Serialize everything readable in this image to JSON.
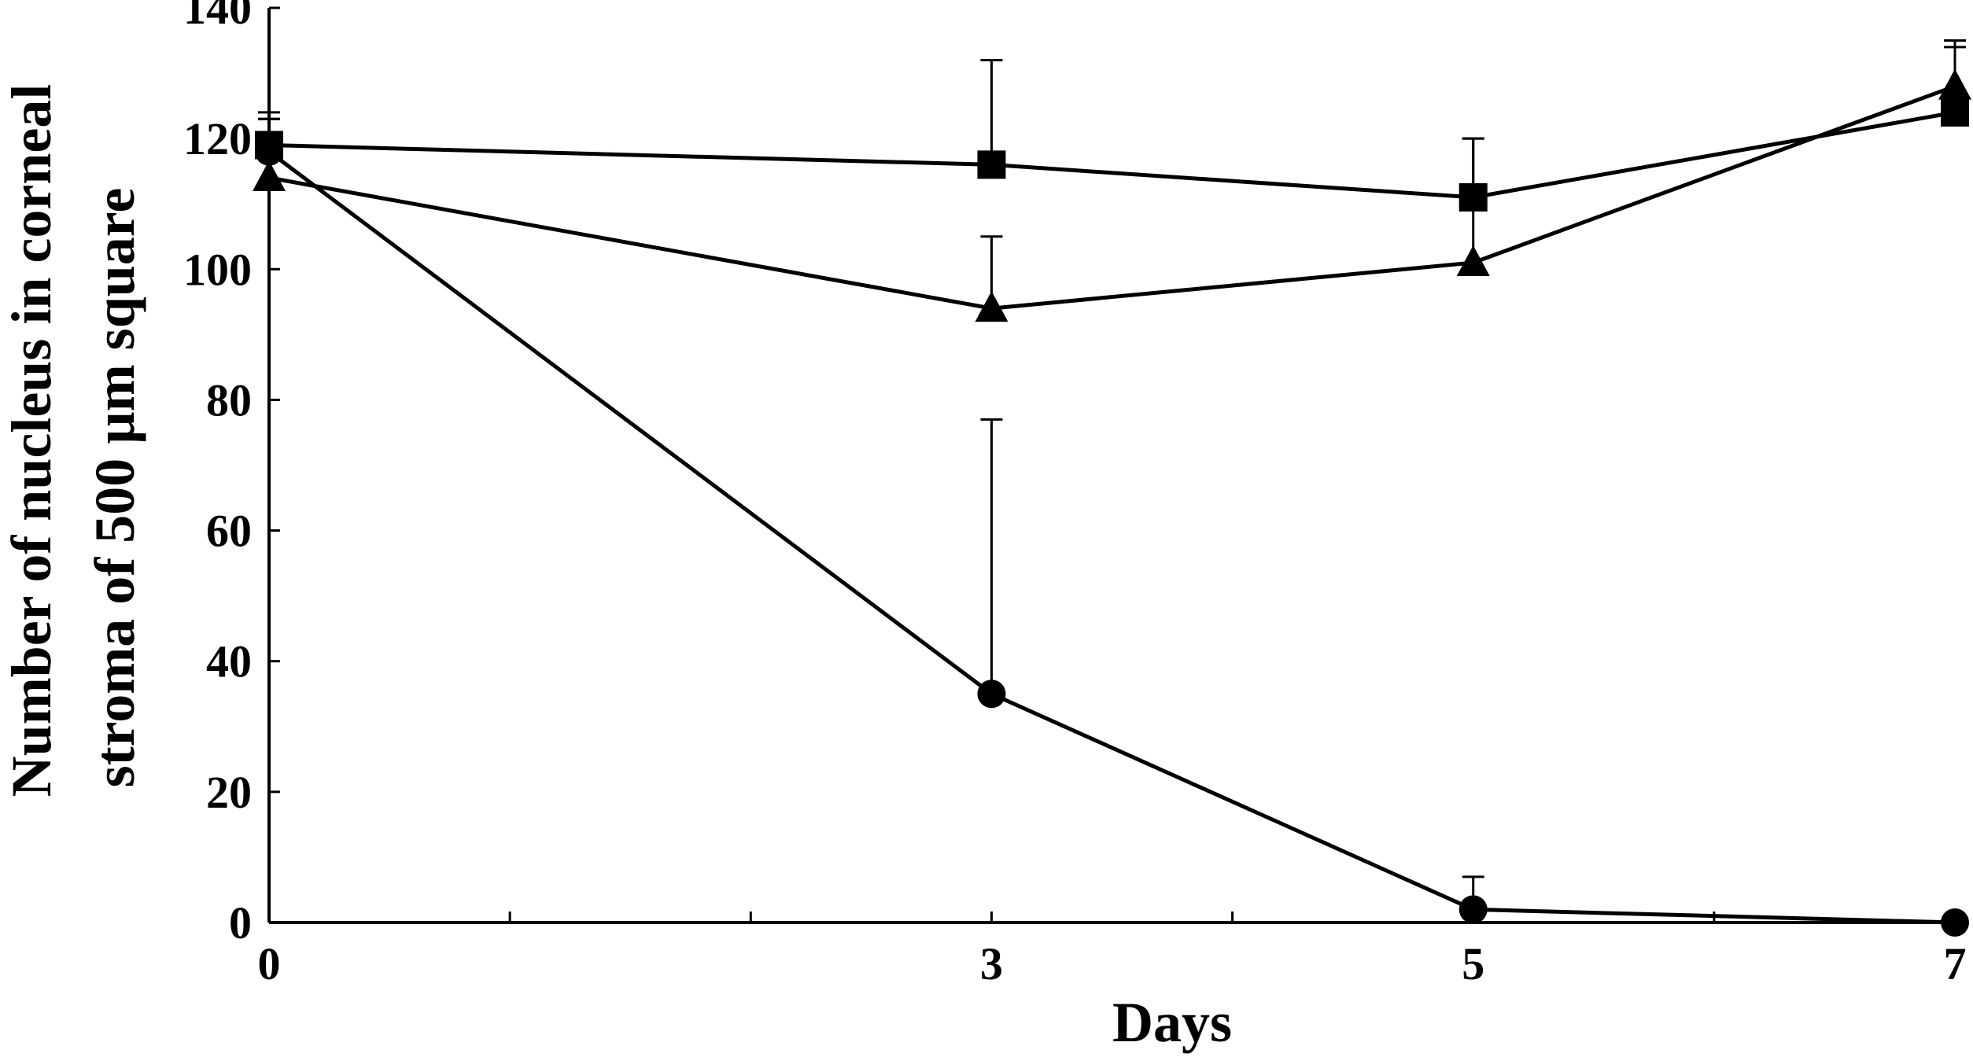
{
  "chart_data": {
    "type": "line",
    "xlabel": "Days",
    "ylabel_lines": [
      "Number of nucleus in corneal",
      "stroma of 500 µm square"
    ],
    "x_ticks": [
      0,
      3,
      5,
      7
    ],
    "y_ticks": [
      0,
      20,
      40,
      60,
      80,
      100,
      120,
      140
    ],
    "xlim": [
      0,
      7
    ],
    "ylim": [
      0,
      140
    ],
    "grid": false,
    "series": [
      {
        "marker": "square",
        "x": [
          0,
          3,
          5,
          7
        ],
        "y": [
          119,
          116,
          111,
          124
        ],
        "err": [
          5,
          16,
          9,
          10
        ]
      },
      {
        "marker": "triangle",
        "x": [
          0,
          3,
          5,
          7
        ],
        "y": [
          114,
          94,
          101,
          128
        ],
        "err": [
          9,
          11,
          19,
          7
        ]
      },
      {
        "marker": "circle",
        "x": [
          0,
          3,
          5,
          7
        ],
        "y": [
          118,
          35,
          2,
          0
        ],
        "err": [
          5,
          42,
          5,
          0
        ]
      }
    ]
  }
}
